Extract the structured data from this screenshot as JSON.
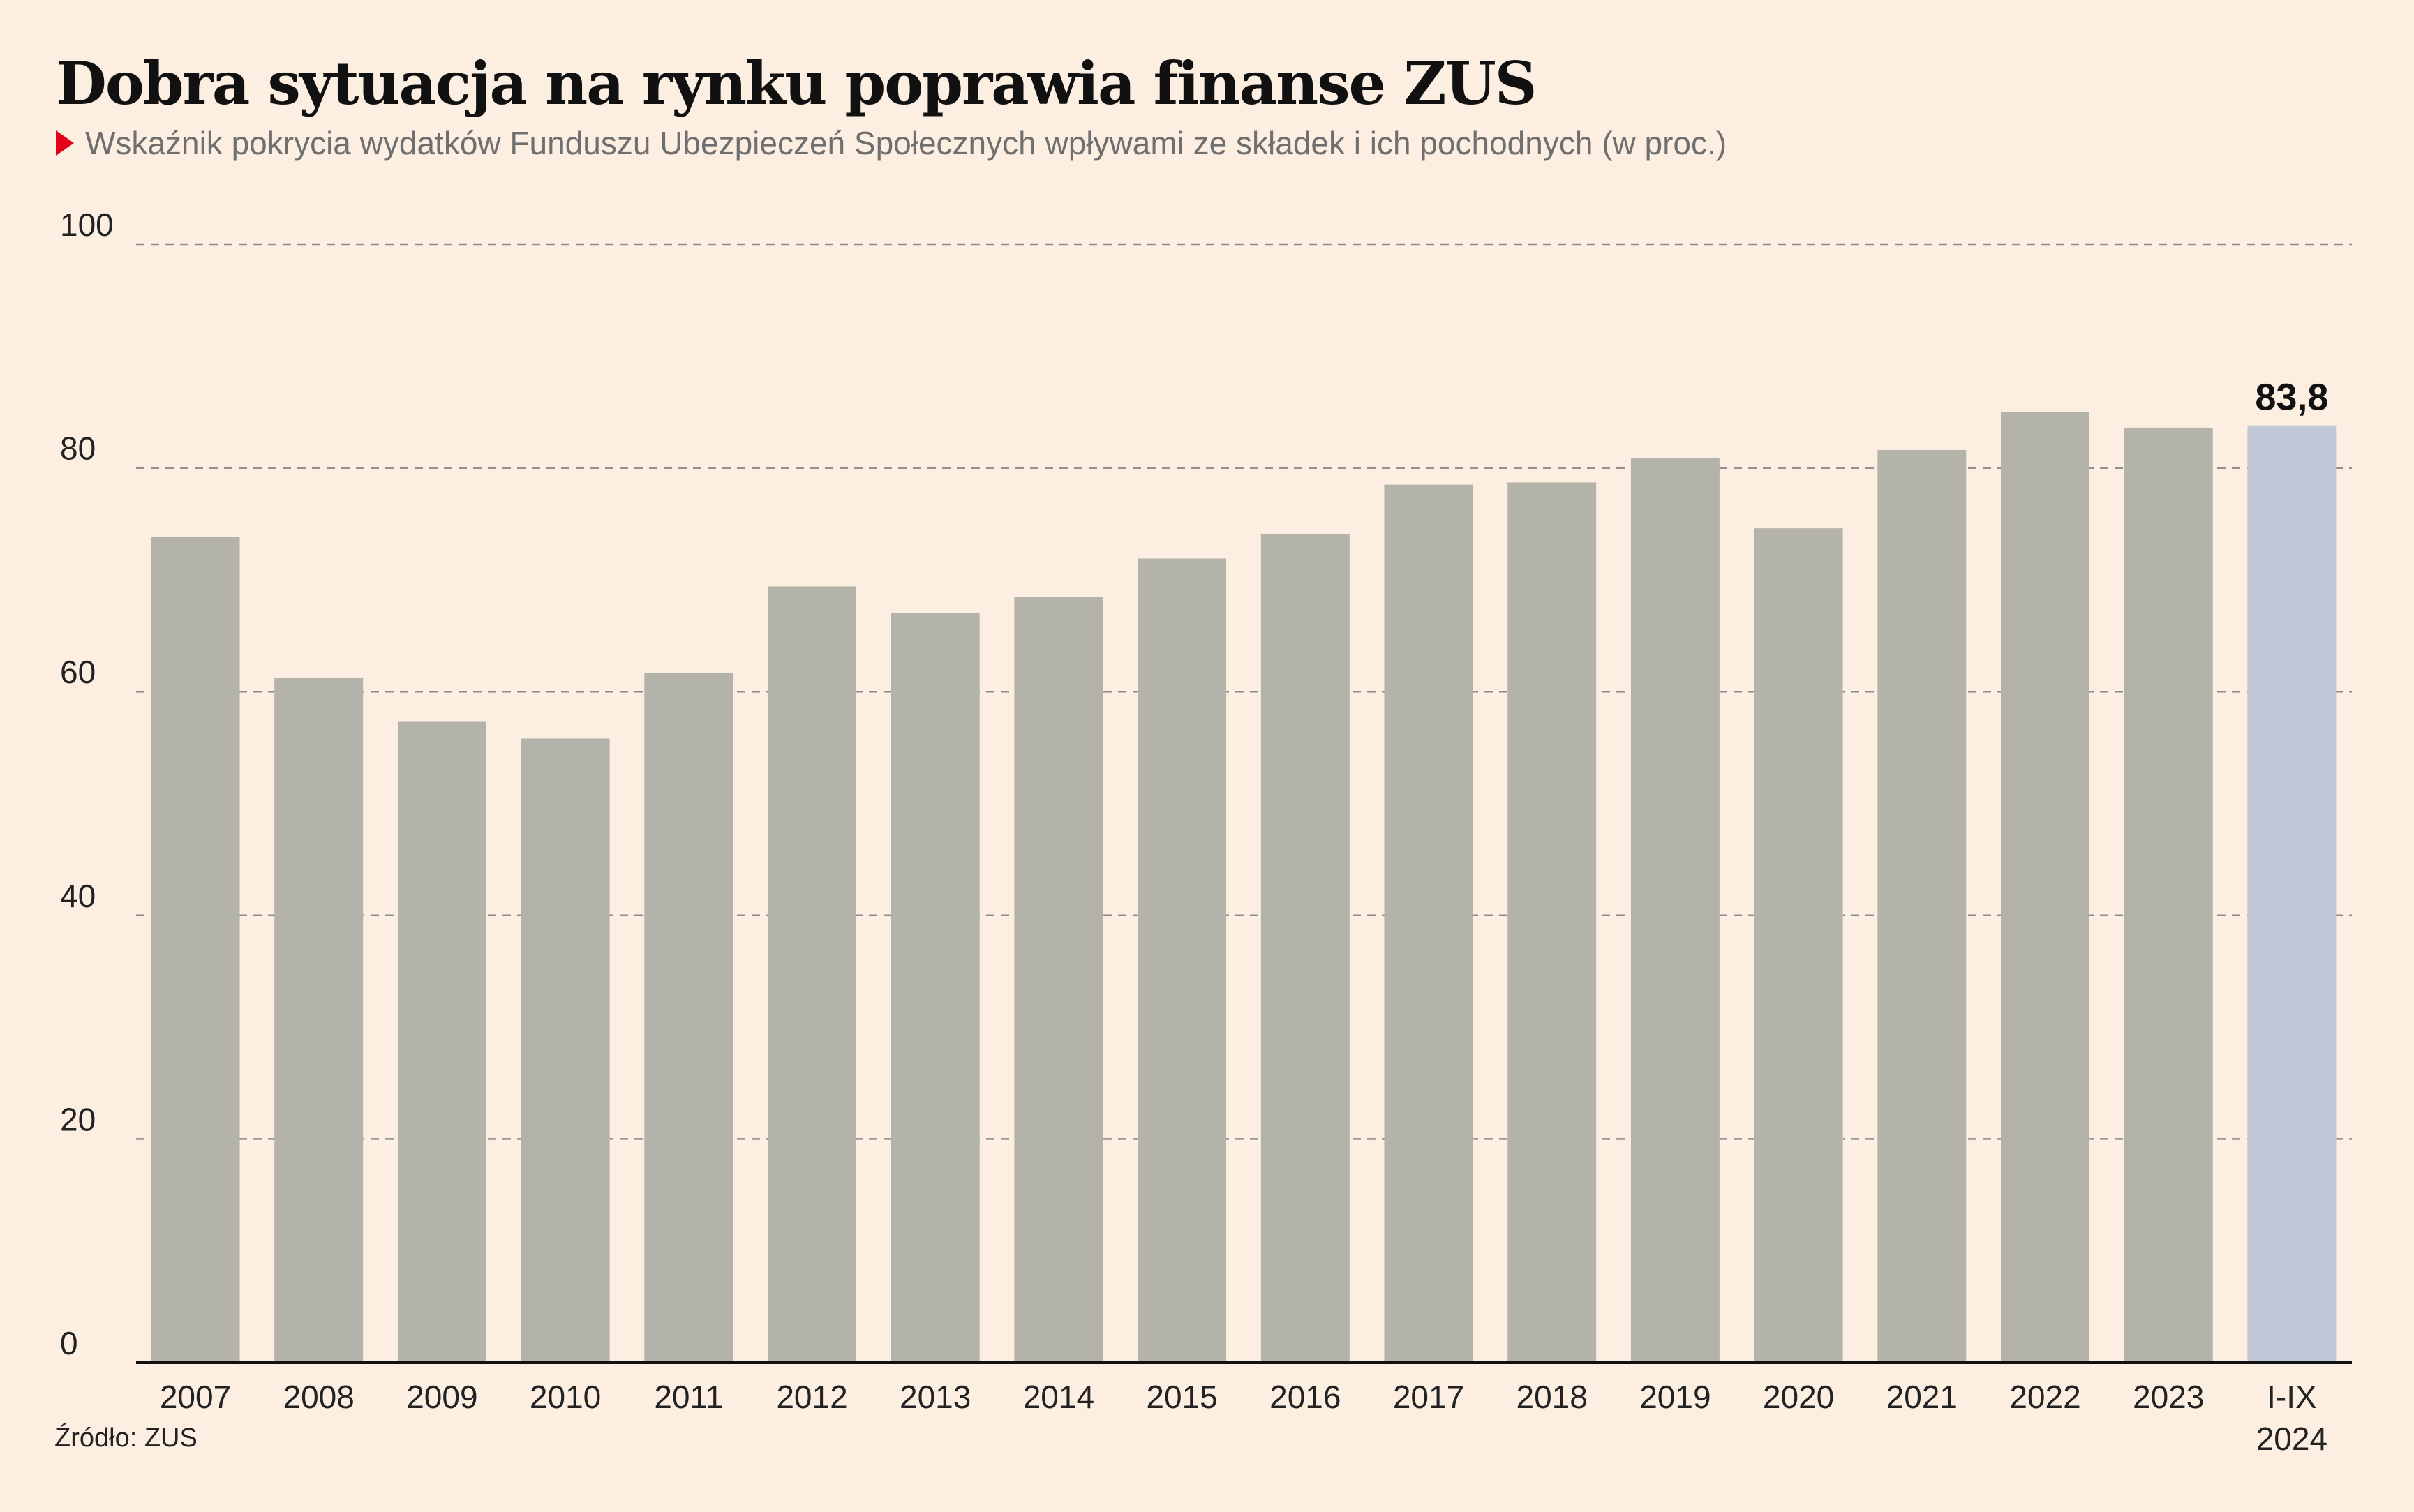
{
  "title": "Dobra sytuacja na rynku poprawia finanse ZUS",
  "subtitle": "Wskaźnik pokrycia wydatków Funduszu Ubezpieczeń Społecznych wpływami ze składek i ich pochodnych (w proc.)",
  "source": "Źródło: ZUS",
  "chart_data": {
    "type": "bar",
    "categories": [
      "2007",
      "2008",
      "2009",
      "2010",
      "2011",
      "2012",
      "2013",
      "2014",
      "2015",
      "2016",
      "2017",
      "2018",
      "2019",
      "2020",
      "2021",
      "2022",
      "2023",
      "I-IX 2024"
    ],
    "category_lines": [
      [
        "2007"
      ],
      [
        "2008"
      ],
      [
        "2009"
      ],
      [
        "2010"
      ],
      [
        "2011"
      ],
      [
        "2012"
      ],
      [
        "2013"
      ],
      [
        "2014"
      ],
      [
        "2015"
      ],
      [
        "2016"
      ],
      [
        "2017"
      ],
      [
        "2018"
      ],
      [
        "2019"
      ],
      [
        "2020"
      ],
      [
        "2021"
      ],
      [
        "2022"
      ],
      [
        "2023"
      ],
      [
        "I-IX",
        "2024"
      ]
    ],
    "values": [
      73.8,
      61.2,
      57.3,
      55.8,
      61.7,
      69.4,
      67.0,
      68.5,
      71.9,
      74.1,
      78.5,
      78.7,
      80.9,
      74.6,
      81.6,
      85.0,
      83.6,
      83.8
    ],
    "highlight_index": 17,
    "highlight_label": "83,8",
    "y_ticks": [
      "0",
      "20",
      "40",
      "60",
      "80",
      "100"
    ],
    "ylim": [
      0,
      100
    ],
    "xlabel": "",
    "ylabel": "",
    "grid": true,
    "colors": {
      "bar": "#b4b3aa",
      "bar_highlight": "#c2c7d8",
      "grid": "#8a8a8a",
      "axis": "#111111",
      "tick_text": "#222222",
      "background": "#fcefe2"
    }
  }
}
